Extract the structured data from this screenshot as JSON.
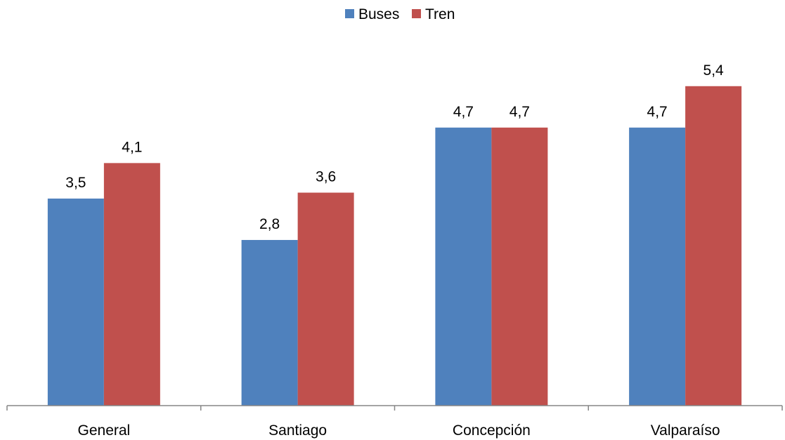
{
  "chart_data": {
    "type": "bar",
    "categories": [
      "General",
      "Santiago",
      "Concepción",
      "Valparaíso"
    ],
    "series": [
      {
        "name": "Buses",
        "values": [
          3.5,
          2.8,
          4.7,
          4.7
        ],
        "labels": [
          "3,5",
          "2,8",
          "4,7",
          "4,7"
        ],
        "color": "#4F81BD"
      },
      {
        "name": "Tren",
        "values": [
          4.1,
          3.6,
          4.7,
          5.4
        ],
        "labels": [
          "4,1",
          "3,6",
          "4,7",
          "5,4"
        ],
        "color": "#C0504D"
      }
    ],
    "ylim": [
      0,
      6.0
    ],
    "legend_position": "top-center",
    "grid": false
  }
}
